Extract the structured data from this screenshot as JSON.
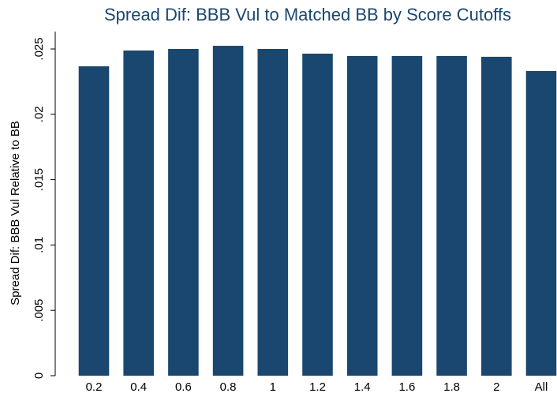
{
  "chart_data": {
    "type": "bar",
    "title": "Spread Dif: BBB Vul to Matched BB by Score Cutoffs",
    "y_label": "Spread Dif: BBB Vul Relative to BB",
    "categories": [
      "0.2",
      "0.4",
      "0.6",
      "0.8",
      "1",
      "1.2",
      "1.4",
      "1.6",
      "1.8",
      "2",
      "All"
    ],
    "values": [
      0.02367,
      0.02488,
      0.025,
      0.02524,
      0.025,
      0.02464,
      0.02446,
      0.02446,
      0.02446,
      0.0244,
      0.02331
    ],
    "color": "#1a476f",
    "ylim": [
      0,
      0.025
    ],
    "yticks": [
      0,
      {
        "value": 0.005,
        "label": ".005"
      },
      {
        "value": 0.01,
        "label": ".01"
      },
      {
        "value": 0.015,
        "label": ".015"
      },
      {
        "value": 0.02,
        "label": ".02"
      },
      {
        "value": 0.025,
        "label": ".025"
      }
    ],
    "grid": false
  }
}
